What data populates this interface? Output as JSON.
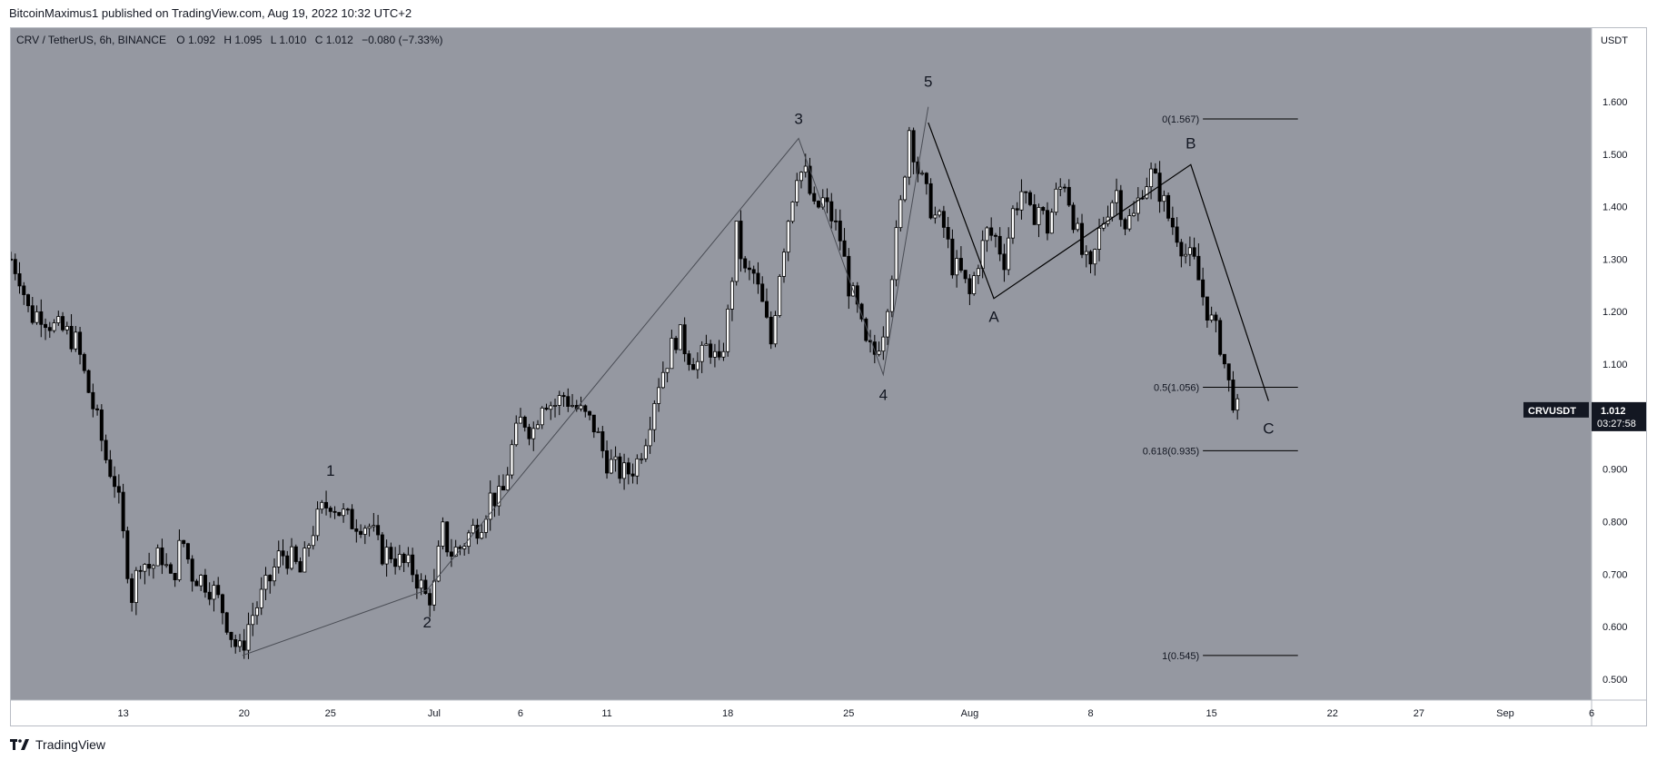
{
  "header": {
    "published_text": "BitcoinMaximus1 published on TradingView.com, Aug 19, 2022 10:32 UTC+2"
  },
  "footer": {
    "brand": "TradingView"
  },
  "legend": {
    "symbol_line": "CRV / TetherUS, 6h, BINANCE",
    "o_label": "O",
    "o_value": "1.092",
    "h_label": "H",
    "h_value": "1.095",
    "l_label": "L",
    "l_value": "1.010",
    "c_label": "C",
    "c_value": "1.012",
    "change": "−0.080 (−7.33%)"
  },
  "price_axis": {
    "currency": "USDT",
    "ticks": [
      "1.600",
      "1.500",
      "1.400",
      "1.300",
      "1.200",
      "1.100",
      "1.000",
      "0.900",
      "0.800",
      "0.700",
      "0.600",
      "0.500"
    ]
  },
  "last_price": {
    "symbol": "CRVUSDT",
    "price": "1.012",
    "countdown": "03:27:58"
  },
  "colors": {
    "plot_bg": "#9598a1",
    "candle": "#000000",
    "wave_line": "#4a4d55",
    "fib_line": "#000000"
  },
  "chart_data": {
    "type": "candlestick",
    "timeframe": "6h",
    "ylim": [
      0.46,
      1.74
    ],
    "x_ticks": [
      {
        "label": "13",
        "t": 13
      },
      {
        "label": "20",
        "t": 20
      },
      {
        "label": "25",
        "t": 25
      },
      {
        "label": "Jul",
        "t": 31
      },
      {
        "label": "6",
        "t": 36
      },
      {
        "label": "11",
        "t": 41
      },
      {
        "label": "18",
        "t": 48
      },
      {
        "label": "25",
        "t": 55
      },
      {
        "label": "Aug",
        "t": 62
      },
      {
        "label": "8",
        "t": 69
      },
      {
        "label": "15",
        "t": 76
      },
      {
        "label": "22",
        "t": 83
      },
      {
        "label": "27",
        "t": 88
      },
      {
        "label": "Sep",
        "t": 93
      },
      {
        "label": "6",
        "t": 98
      }
    ],
    "x_range": [
      6.5,
      98
    ],
    "price_path": [
      [
        6.5,
        1.3
      ],
      [
        7.0,
        1.27
      ],
      [
        7.6,
        1.19
      ],
      [
        8.2,
        1.2
      ],
      [
        9.0,
        1.17
      ],
      [
        9.7,
        1.16
      ],
      [
        10.3,
        1.14
      ],
      [
        10.9,
        1.06
      ],
      [
        11.5,
        0.99
      ],
      [
        12.0,
        0.92
      ],
      [
        12.6,
        0.87
      ],
      [
        13.0,
        0.77
      ],
      [
        13.5,
        0.66
      ],
      [
        14.0,
        0.73
      ],
      [
        14.6,
        0.71
      ],
      [
        15.2,
        0.74
      ],
      [
        15.8,
        0.68
      ],
      [
        16.4,
        0.77
      ],
      [
        17.0,
        0.7
      ],
      [
        17.6,
        0.69
      ],
      [
        18.2,
        0.67
      ],
      [
        18.8,
        0.63
      ],
      [
        19.4,
        0.57
      ],
      [
        19.8,
        0.55
      ],
      [
        20.3,
        0.61
      ],
      [
        20.9,
        0.65
      ],
      [
        21.5,
        0.69
      ],
      [
        22.1,
        0.74
      ],
      [
        22.7,
        0.73
      ],
      [
        23.3,
        0.7
      ],
      [
        23.9,
        0.78
      ],
      [
        24.5,
        0.82
      ],
      [
        25.0,
        0.84
      ],
      [
        25.5,
        0.82
      ],
      [
        26.1,
        0.8
      ],
      [
        26.7,
        0.8
      ],
      [
        27.3,
        0.79
      ],
      [
        27.9,
        0.74
      ],
      [
        28.5,
        0.74
      ],
      [
        29.1,
        0.72
      ],
      [
        29.7,
        0.71
      ],
      [
        30.2,
        0.68
      ],
      [
        30.6,
        0.65
      ],
      [
        31.1,
        0.68
      ],
      [
        31.4,
        0.79
      ],
      [
        31.9,
        0.74
      ],
      [
        32.5,
        0.75
      ],
      [
        33.1,
        0.78
      ],
      [
        33.7,
        0.8
      ],
      [
        34.3,
        0.85
      ],
      [
        34.9,
        0.84
      ],
      [
        35.5,
        0.94
      ],
      [
        36.1,
        1.0
      ],
      [
        36.7,
        0.97
      ],
      [
        37.3,
        1.04
      ],
      [
        37.9,
        1.02
      ],
      [
        38.5,
        1.04
      ],
      [
        39.1,
        1.02
      ],
      [
        39.7,
        1.0
      ],
      [
        40.3,
        0.98
      ],
      [
        40.9,
        0.92
      ],
      [
        41.5,
        0.9
      ],
      [
        42.1,
        0.89
      ],
      [
        42.7,
        0.91
      ],
      [
        43.3,
        0.97
      ],
      [
        43.9,
        1.06
      ],
      [
        44.5,
        1.11
      ],
      [
        45.1,
        1.16
      ],
      [
        45.7,
        1.12
      ],
      [
        46.3,
        1.1
      ],
      [
        46.9,
        1.14
      ],
      [
        47.5,
        1.09
      ],
      [
        48.0,
        1.19
      ],
      [
        48.5,
        1.35
      ],
      [
        49.0,
        1.27
      ],
      [
        49.5,
        1.27
      ],
      [
        50.0,
        1.21
      ],
      [
        50.5,
        1.14
      ],
      [
        51.0,
        1.28
      ],
      [
        51.5,
        1.38
      ],
      [
        52.0,
        1.47
      ],
      [
        52.5,
        1.46
      ],
      [
        53.0,
        1.39
      ],
      [
        53.5,
        1.41
      ],
      [
        54.0,
        1.38
      ],
      [
        54.5,
        1.34
      ],
      [
        55.0,
        1.25
      ],
      [
        55.5,
        1.2
      ],
      [
        56.0,
        1.13
      ],
      [
        56.5,
        1.12
      ],
      [
        57.0,
        1.17
      ],
      [
        57.5,
        1.28
      ],
      [
        58.0,
        1.4
      ],
      [
        58.5,
        1.55
      ],
      [
        59.0,
        1.47
      ],
      [
        59.5,
        1.42
      ],
      [
        60.0,
        1.38
      ],
      [
        60.5,
        1.36
      ],
      [
        61.0,
        1.29
      ],
      [
        61.5,
        1.27
      ],
      [
        62.0,
        1.23
      ],
      [
        62.5,
        1.3
      ],
      [
        63.0,
        1.35
      ],
      [
        63.5,
        1.34
      ],
      [
        64.0,
        1.3
      ],
      [
        64.5,
        1.39
      ],
      [
        65.0,
        1.43
      ],
      [
        65.5,
        1.38
      ],
      [
        66.0,
        1.4
      ],
      [
        66.5,
        1.36
      ],
      [
        67.0,
        1.42
      ],
      [
        67.5,
        1.45
      ],
      [
        68.0,
        1.38
      ],
      [
        68.5,
        1.31
      ],
      [
        69.0,
        1.27
      ],
      [
        69.5,
        1.35
      ],
      [
        70.0,
        1.4
      ],
      [
        70.5,
        1.43
      ],
      [
        71.0,
        1.37
      ],
      [
        71.5,
        1.38
      ],
      [
        72.0,
        1.44
      ],
      [
        72.5,
        1.46
      ],
      [
        73.0,
        1.43
      ],
      [
        73.5,
        1.38
      ],
      [
        74.0,
        1.35
      ],
      [
        74.5,
        1.31
      ],
      [
        75.0,
        1.29
      ],
      [
        75.5,
        1.23
      ],
      [
        76.0,
        1.18
      ],
      [
        76.5,
        1.14
      ],
      [
        77.0,
        1.06
      ],
      [
        77.5,
        1.01
      ]
    ],
    "wave_points": [
      {
        "label": "1",
        "t": 25.0,
        "v": 0.863
      },
      {
        "label": "2",
        "t": 30.6,
        "v": 0.64
      },
      {
        "label": "3",
        "t": 52.1,
        "v": 1.53
      },
      {
        "label": "4",
        "t": 57.0,
        "v": 1.08
      },
      {
        "label": "5",
        "t": 59.6,
        "v": 1.59
      },
      {
        "label": "A",
        "t": 63.4,
        "v": 1.225
      },
      {
        "label": "B",
        "t": 74.8,
        "v": 1.48
      },
      {
        "label": "C",
        "t": 79.3,
        "v": 1.02
      }
    ],
    "impulse_path": [
      [
        19.9,
        0.545
      ],
      [
        30.6,
        0.67
      ],
      [
        52.1,
        1.53
      ],
      [
        57.0,
        1.08
      ],
      [
        59.6,
        1.59
      ]
    ],
    "correction_path": [
      [
        59.6,
        1.56
      ],
      [
        63.4,
        1.225
      ],
      [
        74.8,
        1.48
      ],
      [
        79.3,
        1.03
      ]
    ],
    "fib_levels": [
      {
        "label": "0(1.567)",
        "value": 1.567
      },
      {
        "label": "0.5(1.056)",
        "value": 1.056
      },
      {
        "label": "0.618(0.935)",
        "value": 0.935
      },
      {
        "label": "1(0.545)",
        "value": 0.545
      }
    ],
    "fib_t_range": [
      75.5,
      81.0
    ]
  }
}
